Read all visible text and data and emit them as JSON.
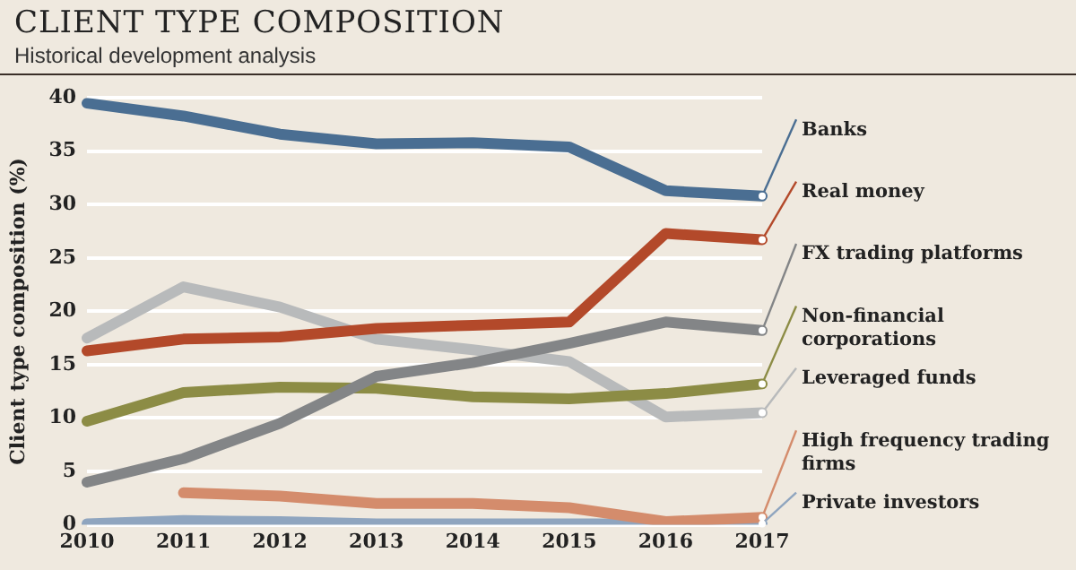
{
  "chart_data": {
    "type": "line",
    "title": "CLIENT TYPE COMPOSITION",
    "subtitle": "Historical development analysis",
    "ylabel": "Client type composition (%)",
    "categories": [
      "2010",
      "2011",
      "2012",
      "2013",
      "2014",
      "2015",
      "2016",
      "2017"
    ],
    "ylim": [
      0,
      40
    ],
    "yticks": [
      0,
      5,
      10,
      15,
      20,
      25,
      30,
      35,
      40
    ],
    "grid": "y",
    "legend": "right",
    "marker": "none",
    "line_style": "solid",
    "series": [
      {
        "name": "Banks",
        "color": "#4a6e92",
        "values": [
          39.5,
          38.3,
          36.6,
          35.7,
          35.8,
          35.4,
          31.3,
          30.8
        ]
      },
      {
        "name": "Real money",
        "color": "#b3492a",
        "values": [
          16.3,
          17.4,
          17.6,
          18.4,
          18.7,
          19.0,
          27.3,
          26.7
        ]
      },
      {
        "name": "FX trading platforms",
        "color": "#838587",
        "values": [
          4.0,
          6.2,
          9.5,
          13.9,
          15.2,
          17.0,
          19.0,
          18.2
        ]
      },
      {
        "name": "Non-financial corporations",
        "color": "#8c8c45",
        "values": [
          9.7,
          12.4,
          12.9,
          12.8,
          12.0,
          11.8,
          12.3,
          13.2
        ]
      },
      {
        "name": "Leveraged funds",
        "color": "#b8babb",
        "values": [
          17.5,
          22.3,
          20.4,
          17.4,
          16.4,
          15.3,
          10.1,
          10.5
        ]
      },
      {
        "name": "High frequency trading firms",
        "color": "#d48c6c",
        "values": [
          null,
          3.0,
          2.7,
          2.0,
          2.0,
          1.6,
          0.3,
          0.7
        ]
      },
      {
        "name": "Private investors",
        "color": "#8fa5bf",
        "values": [
          0.1,
          0.4,
          0.3,
          0.1,
          0.1,
          0.1,
          0.1,
          0.1
        ]
      }
    ]
  }
}
